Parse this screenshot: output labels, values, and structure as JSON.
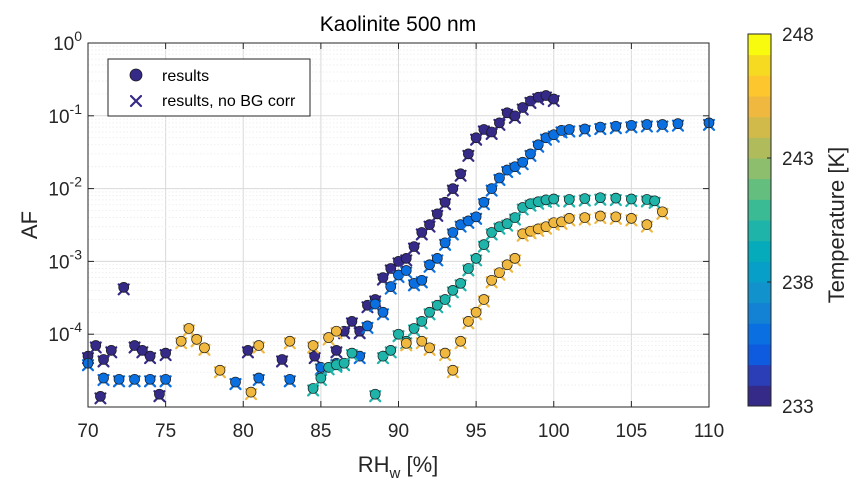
{
  "chart_data": {
    "type": "scatter",
    "title": "Kaolinite 500 nm",
    "xlabel": "RH",
    "xlabel_sub": "w",
    "xlabel_unit": " [%]",
    "ylabel": "AF",
    "xlim": [
      70,
      110
    ],
    "ylim_log10": [
      -5,
      0
    ],
    "y_scale": "log",
    "grid": true,
    "x_ticks": [
      "70",
      "75",
      "80",
      "85",
      "90",
      "95",
      "100",
      "105",
      "110"
    ],
    "y_ticks": [
      {
        "base": "10",
        "exp": "0"
      },
      {
        "base": "10",
        "exp": "-1"
      },
      {
        "base": "10",
        "exp": "-2"
      },
      {
        "base": "10",
        "exp": "-3"
      },
      {
        "base": "10",
        "exp": "-4"
      }
    ],
    "legend": {
      "position": "top-left",
      "entries": [
        {
          "label": "results",
          "marker": "circle"
        },
        {
          "label": "results, no BG corr",
          "marker": "x"
        }
      ]
    },
    "colorbar": {
      "label": "Temperature [K]",
      "min": 233,
      "max": 248,
      "ticks": [
        "248",
        "243",
        "238",
        "233"
      ],
      "colors": [
        "#352a87",
        "#2b3eb8",
        "#0f5be0",
        "#0a6fe1",
        "#1382d4",
        "#1192cc",
        "#079fc8",
        "#06abbb",
        "#1eb4aa",
        "#3bbb94",
        "#64be7e",
        "#8cbe6e",
        "#b0bc5c",
        "#d2ba4a",
        "#f0b83e",
        "#fdc62f",
        "#f6da22",
        "#f9fb0e"
      ]
    },
    "series": [
      {
        "temperature_K": 233.5,
        "color": "#352a87",
        "points": [
          [
            70.0,
            5e-05
          ],
          [
            70.5,
            7e-05
          ],
          [
            71.0,
            4.5e-05
          ],
          [
            71.5,
            6e-05
          ],
          [
            72.3,
            0.00044
          ],
          [
            73.0,
            7e-05
          ],
          [
            73.5,
            6e-05
          ],
          [
            74.0,
            5e-05
          ],
          [
            75.0,
            5.5e-05
          ],
          [
            70.8,
            1.4e-05
          ],
          [
            74.6,
            1.5e-05
          ],
          [
            80.3,
            6e-05
          ],
          [
            82.5,
            4.5e-05
          ],
          [
            84.6,
            5e-05
          ],
          [
            86.0,
            6e-05
          ],
          [
            86.5,
            0.00011
          ],
          [
            87.0,
            0.00015
          ],
          [
            87.5,
            0.00011
          ],
          [
            88.0,
            0.00025
          ],
          [
            88.5,
            0.0003
          ],
          [
            89.0,
            0.0006
          ],
          [
            89.5,
            0.0008
          ],
          [
            90.0,
            0.001
          ],
          [
            90.5,
            0.0011
          ],
          [
            91.0,
            0.0016
          ],
          [
            91.5,
            0.0025
          ],
          [
            92.0,
            0.0032
          ],
          [
            92.5,
            0.0045
          ],
          [
            93.0,
            0.0065
          ],
          [
            93.5,
            0.01
          ],
          [
            94.0,
            0.016
          ],
          [
            94.5,
            0.03
          ],
          [
            95.0,
            0.05
          ],
          [
            95.5,
            0.065
          ],
          [
            96.0,
            0.06
          ],
          [
            96.5,
            0.08
          ],
          [
            97.0,
            0.11
          ],
          [
            97.5,
            0.1
          ],
          [
            98.0,
            0.13
          ],
          [
            98.5,
            0.16
          ],
          [
            99.0,
            0.18
          ],
          [
            99.5,
            0.19
          ],
          [
            100.0,
            0.17
          ]
        ]
      },
      {
        "temperature_K": 235.5,
        "color": "#0a6fe1",
        "points": [
          [
            70.0,
            4e-05
          ],
          [
            71.0,
            2.5e-05
          ],
          [
            72.0,
            2.4e-05
          ],
          [
            73.0,
            2.4e-05
          ],
          [
            74.0,
            2.4e-05
          ],
          [
            75.0,
            2.4e-05
          ],
          [
            79.5,
            2.2e-05
          ],
          [
            81.0,
            2.5e-05
          ],
          [
            83.0,
            2.4e-05
          ],
          [
            85.0,
            3.5e-05
          ],
          [
            86.0,
            4e-05
          ],
          [
            87.5,
            5e-05
          ],
          [
            88.0,
            0.00013
          ],
          [
            88.5,
            0.00026
          ],
          [
            89.0,
            0.0002
          ],
          [
            89.5,
            0.00045
          ],
          [
            90.0,
            0.00065
          ],
          [
            90.5,
            0.00075
          ],
          [
            91.0,
            0.0005
          ],
          [
            91.5,
            0.00055
          ],
          [
            92.0,
            0.0009
          ],
          [
            92.5,
            0.0011
          ],
          [
            93.0,
            0.0018
          ],
          [
            93.5,
            0.0025
          ],
          [
            94.0,
            0.0032
          ],
          [
            94.5,
            0.0036
          ],
          [
            95.0,
            0.0041
          ],
          [
            95.5,
            0.0065
          ],
          [
            96.0,
            0.01
          ],
          [
            96.5,
            0.014
          ],
          [
            97.0,
            0.018
          ],
          [
            97.5,
            0.02
          ],
          [
            98.0,
            0.023
          ],
          [
            98.5,
            0.03
          ],
          [
            99.0,
            0.04
          ],
          [
            99.5,
            0.05
          ],
          [
            100.0,
            0.055
          ],
          [
            100.5,
            0.063
          ],
          [
            101.0,
            0.065
          ],
          [
            102.0,
            0.066
          ],
          [
            103.0,
            0.07
          ],
          [
            104.0,
            0.072
          ],
          [
            105.0,
            0.074
          ],
          [
            106.0,
            0.076
          ],
          [
            107.0,
            0.076
          ],
          [
            108.0,
            0.078
          ],
          [
            110.0,
            0.08
          ]
        ]
      },
      {
        "temperature_K": 239.5,
        "color": "#1eb4aa",
        "points": [
          [
            84.5,
            1.8e-05
          ],
          [
            85.0,
            2.5e-05
          ],
          [
            85.5,
            3.5e-05
          ],
          [
            86.0,
            3.8e-05
          ],
          [
            86.5,
            4e-05
          ],
          [
            87.0,
            5.5e-05
          ],
          [
            88.5,
            1.5e-05
          ],
          [
            89.0,
            5e-05
          ],
          [
            89.5,
            6e-05
          ],
          [
            90.0,
            0.0001
          ],
          [
            90.5,
            8e-05
          ],
          [
            91.0,
            0.00012
          ],
          [
            91.5,
            0.00015
          ],
          [
            92.0,
            0.0002
          ],
          [
            92.5,
            0.00025
          ],
          [
            93.0,
            0.0003
          ],
          [
            93.5,
            0.0004
          ],
          [
            94.0,
            0.0005
          ],
          [
            94.5,
            0.0008
          ],
          [
            95.0,
            0.0011
          ],
          [
            95.5,
            0.0017
          ],
          [
            96.0,
            0.0025
          ],
          [
            96.5,
            0.003
          ],
          [
            97.0,
            0.0033
          ],
          [
            97.5,
            0.004
          ],
          [
            98.0,
            0.0055
          ],
          [
            98.5,
            0.0062
          ],
          [
            99.0,
            0.0066
          ],
          [
            99.5,
            0.007
          ],
          [
            100.0,
            0.0072
          ],
          [
            101.0,
            0.0071
          ],
          [
            102.0,
            0.0073
          ],
          [
            103.0,
            0.0075
          ],
          [
            104.0,
            0.0074
          ],
          [
            105.0,
            0.0072
          ],
          [
            106.0,
            0.0071
          ],
          [
            106.5,
            0.0068
          ]
        ]
      },
      {
        "temperature_K": 245.0,
        "color": "#f0b83e",
        "points": [
          [
            76.0,
            8e-05
          ],
          [
            76.5,
            0.00012
          ],
          [
            77.0,
            8.5e-05
          ],
          [
            77.5,
            6.5e-05
          ],
          [
            78.5,
            3.2e-05
          ],
          [
            80.5,
            1.6e-05
          ],
          [
            81.0,
            7e-05
          ],
          [
            83.0,
            8e-05
          ],
          [
            84.5,
            7e-05
          ],
          [
            85.5,
            9e-05
          ],
          [
            86.0,
            0.00011
          ],
          [
            90.5,
            7.5e-05
          ],
          [
            91.5,
            8e-05
          ],
          [
            92.0,
            6.5e-05
          ],
          [
            93.0,
            5.5e-05
          ],
          [
            93.5,
            3.2e-05
          ],
          [
            94.0,
            8e-05
          ],
          [
            94.5,
            0.00015
          ],
          [
            95.0,
            0.0002
          ],
          [
            95.5,
            0.0003
          ],
          [
            96.0,
            0.00055
          ],
          [
            96.5,
            0.0007
          ],
          [
            97.0,
            0.0009
          ],
          [
            97.5,
            0.0011
          ],
          [
            98.0,
            0.0024
          ],
          [
            98.5,
            0.0026
          ],
          [
            99.0,
            0.0028
          ],
          [
            99.5,
            0.003
          ],
          [
            100.0,
            0.0034
          ],
          [
            100.5,
            0.0035
          ],
          [
            101.0,
            0.0039
          ],
          [
            102.0,
            0.004
          ],
          [
            103.0,
            0.0042
          ],
          [
            104.0,
            0.0041
          ],
          [
            105.0,
            0.0039
          ],
          [
            106.0,
            0.0032
          ],
          [
            107.0,
            0.0048
          ]
        ]
      }
    ]
  }
}
